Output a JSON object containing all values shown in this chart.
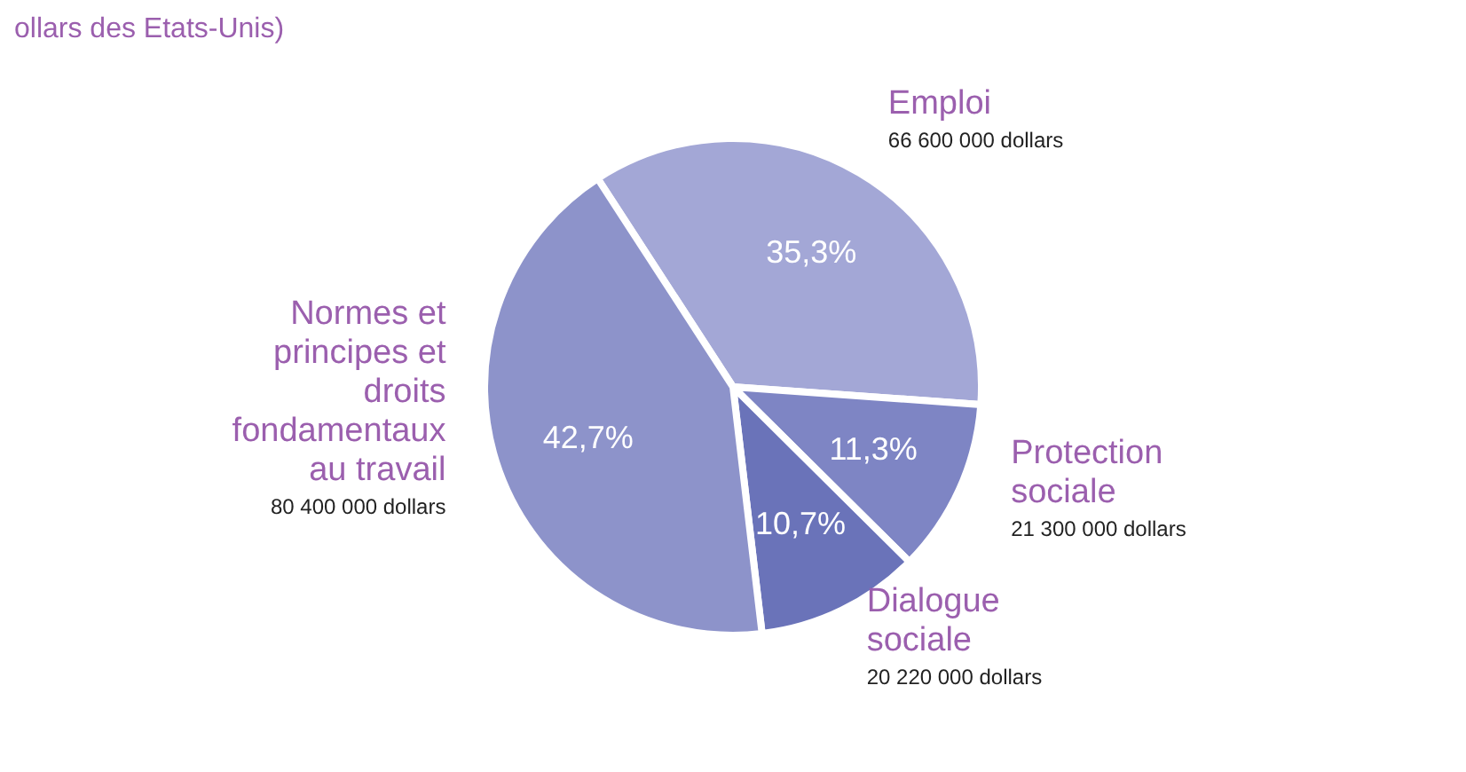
{
  "chart_data": {
    "type": "pie",
    "title": "ollars des Etats-Unis)",
    "categories": [
      "Emploi",
      "Protection sociale",
      "Dialogue sociale",
      "Normes et principes et droits fondamentaux au travail"
    ],
    "values": [
      35.3,
      11.3,
      10.7,
      42.7
    ],
    "value_labels": [
      "35,3%",
      "11,3%",
      "10,7%",
      "42,7%"
    ],
    "colors": [
      "#a3a7d6",
      "#7e85c4",
      "#6a73b9",
      "#8d93ca"
    ],
    "annotations": [
      {
        "text": "66 600 000 dollars",
        "x": "Emploi"
      },
      {
        "text": "21 300 000 dollars",
        "x": "Protection sociale"
      },
      {
        "text": "20 220 000 dollars",
        "x": "Dialogue sociale"
      },
      {
        "text": "80 400 000 dollars",
        "x": "Normes et principes et droits fondamentaux au travail"
      }
    ]
  }
}
